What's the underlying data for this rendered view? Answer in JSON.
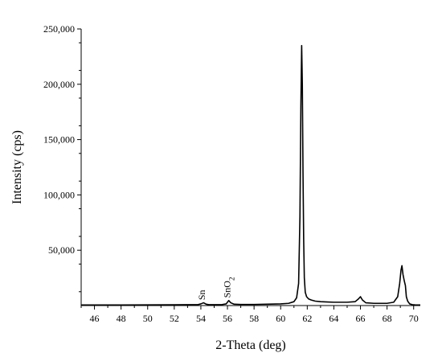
{
  "chart_data": {
    "type": "line",
    "title": "",
    "xlabel": "2-Theta (deg)",
    "ylabel": "Intensity (cps)",
    "xlim": [
      45,
      70.5
    ],
    "ylim": [
      0,
      250000
    ],
    "grid": false,
    "x_ticks": [
      46,
      48,
      50,
      52,
      54,
      56,
      58,
      60,
      62,
      64,
      66,
      68,
      70
    ],
    "x_tick_labels": [
      "46",
      "48",
      "50",
      "52",
      "54",
      "56",
      "58",
      "60",
      "62",
      "64",
      "66",
      "68",
      "70"
    ],
    "y_ticks": [
      50000,
      100000,
      150000,
      200000,
      250000
    ],
    "y_tick_labels": [
      "50,000",
      "100,000",
      "150,000",
      "200,000",
      "250,000"
    ],
    "series": [
      {
        "x": [
          45.0,
          46.0,
          48.0,
          50.0,
          52.0,
          53.0,
          53.8,
          54.0,
          54.2,
          54.4,
          54.6,
          55.0,
          55.6,
          55.9,
          56.1,
          56.25,
          56.5,
          57.0,
          58.0,
          59.0,
          60.0,
          60.6,
          61.0,
          61.2,
          61.35,
          61.45,
          61.52,
          61.58,
          61.63,
          61.68,
          61.73,
          61.78,
          61.85,
          61.95,
          62.1,
          62.3,
          62.6,
          63.0,
          63.5,
          64.0,
          65.0,
          65.6,
          65.85,
          66.0,
          66.15,
          66.4,
          67.0,
          68.0,
          68.5,
          68.8,
          68.95,
          69.05,
          69.12,
          69.2,
          69.3,
          69.38,
          69.45,
          69.55,
          69.7,
          69.9,
          70.1,
          70.3,
          70.5
        ],
        "y": [
          500,
          500,
          500,
          600,
          700,
          800,
          900,
          1500,
          2500,
          1200,
          800,
          800,
          900,
          1500,
          4500,
          2500,
          1200,
          1000,
          1000,
          1200,
          1500,
          2000,
          3500,
          7000,
          20000,
          80000,
          180000,
          235000,
          200000,
          120000,
          60000,
          25000,
          12000,
          8000,
          6000,
          5000,
          4000,
          3500,
          3200,
          3000,
          3000,
          3500,
          6000,
          8000,
          5000,
          2500,
          2000,
          2000,
          3000,
          8000,
          20000,
          32000,
          36000,
          28000,
          22000,
          18000,
          8000,
          4000,
          1500,
          800,
          600,
          500,
          500
        ]
      }
    ],
    "annotations": [
      {
        "text": "Sn",
        "x": 54.3,
        "y": 5000
      },
      {
        "text": "SnO",
        "sub": "2",
        "x": 56.2,
        "y": 7000
      }
    ]
  }
}
